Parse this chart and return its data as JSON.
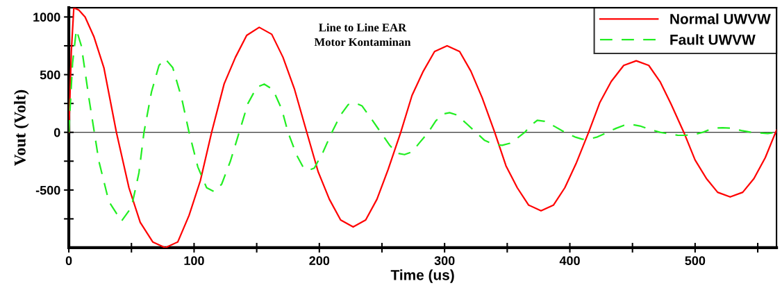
{
  "chart_data": {
    "type": "line",
    "title": "Line to Line EAR\nMotor Kontaminan",
    "xlabel": "Time (us)",
    "ylabel": "Vout (Volt)",
    "xlim": [
      0,
      565
    ],
    "ylim": [
      -1000,
      1080
    ],
    "xticks": [
      0,
      {
        "value": 50,
        "label": null
      },
      100,
      {
        "value": 150,
        "label": null
      },
      200,
      {
        "value": 250,
        "label": null
      },
      300,
      {
        "value": 350,
        "label": null
      },
      400,
      {
        "value": 450,
        "label": null
      },
      500,
      {
        "value": 550,
        "label": null
      }
    ],
    "yticks": [
      {
        "value": -750,
        "label": null
      },
      -500,
      {
        "value": -250,
        "label": null
      },
      0,
      {
        "value": 250,
        "label": null
      },
      500,
      {
        "value": 750,
        "label": null
      },
      1000
    ],
    "grid": false,
    "legend": "top right",
    "ref_lines": [
      {
        "axis": "y",
        "value": 0,
        "color": "#000000",
        "line_style": "solid"
      }
    ],
    "series": [
      {
        "name": "Normal UWVW",
        "color": "#ff0000",
        "line_style": "solid",
        "x": [
          0,
          2,
          4,
          8,
          13,
          20,
          28,
          38,
          48,
          57,
          67,
          77,
          87,
          96,
          105,
          114,
          124,
          133,
          142,
          152,
          162,
          171,
          180,
          190,
          199,
          208,
          217,
          227,
          237,
          246,
          255,
          265,
          274,
          283,
          292,
          302,
          312,
          321,
          330,
          340,
          349,
          358,
          367,
          377,
          387,
          396,
          405,
          415,
          424,
          433,
          443,
          453,
          463,
          472,
          481,
          491,
          500,
          509,
          518,
          528,
          538,
          547,
          556,
          565
        ],
        "values": [
          0,
          700,
          1080,
          1060,
          1000,
          830,
          560,
          0,
          -480,
          -780,
          -950,
          -1000,
          -950,
          -720,
          -420,
          0,
          420,
          650,
          840,
          910,
          850,
          650,
          380,
          0,
          -340,
          -580,
          -760,
          -820,
          -760,
          -580,
          -320,
          0,
          320,
          530,
          700,
          750,
          700,
          530,
          300,
          0,
          -290,
          -480,
          -630,
          -680,
          -630,
          -480,
          -270,
          0,
          260,
          440,
          580,
          620,
          580,
          440,
          240,
          0,
          -240,
          -400,
          -520,
          -560,
          -520,
          -400,
          -220,
          20
        ]
      },
      {
        "name": "Fault UWVW",
        "color": "#22ee22",
        "line_style": "dashed",
        "x": [
          0,
          3,
          6,
          10,
          16,
          24,
          32,
          42,
          50,
          56,
          60,
          66,
          72,
          77,
          83,
          90,
          96,
          103,
          110,
          116,
          122,
          129,
          136,
          143,
          150,
          156,
          163,
          170,
          175,
          182,
          187,
          191,
          196,
          203,
          210,
          217,
          223,
          228,
          234,
          242,
          249,
          256,
          262,
          268,
          274,
          280,
          287,
          293,
          299,
          304,
          310,
          318,
          325,
          332,
          339,
          346,
          352,
          358,
          364,
          369,
          374,
          380,
          388,
          396,
          404,
          410,
          415,
          422,
          430,
          437,
          443,
          449,
          456,
          464,
          472,
          480,
          486,
          492,
          499,
          506,
          512,
          517,
          522,
          529,
          537,
          545,
          552,
          558,
          565
        ],
        "values": [
          0,
          600,
          890,
          750,
          300,
          -250,
          -600,
          -770,
          -650,
          -350,
          0,
          350,
          580,
          637,
          560,
          300,
          0,
          -300,
          -480,
          -514,
          -450,
          -250,
          0,
          250,
          390,
          418,
          370,
          200,
          0,
          -200,
          -300,
          -331,
          -310,
          -170,
          0,
          150,
          240,
          257,
          230,
          110,
          0,
          -110,
          -180,
          -193,
          -170,
          -90,
          0,
          100,
          160,
          170,
          150,
          70,
          0,
          -70,
          -105,
          -112,
          -95,
          -50,
          0,
          60,
          104,
          95,
          50,
          0,
          -40,
          -60,
          -60,
          -40,
          0,
          35,
          60,
          68,
          55,
          25,
          0,
          -15,
          -25,
          -26,
          -20,
          0,
          25,
          38,
          40,
          35,
          15,
          0,
          -5,
          -10,
          0
        ]
      }
    ]
  }
}
